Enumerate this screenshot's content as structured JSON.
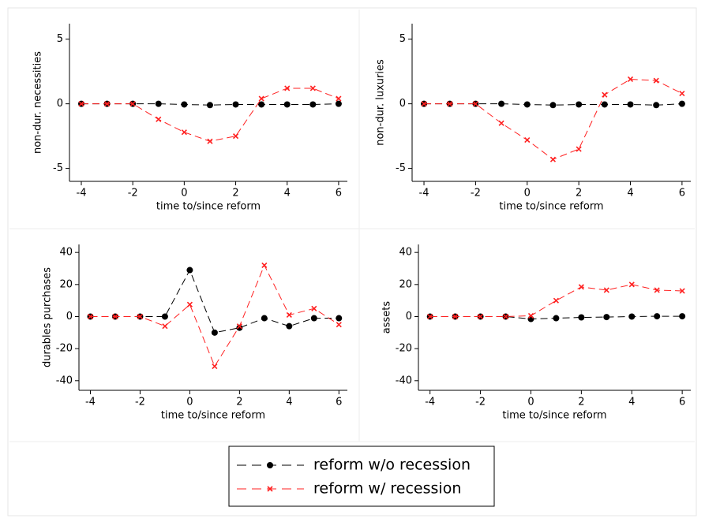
{
  "chart_data": [
    {
      "type": "line",
      "ylabel": "non-dur. necessities",
      "xlabel": "time to/since reform",
      "x": [
        -4,
        -3,
        -2,
        -1,
        0,
        1,
        2,
        3,
        4,
        5,
        6
      ],
      "xlim": [
        -4.46,
        6.34
      ],
      "xticks": [
        -4,
        -2,
        0,
        2,
        4,
        6
      ],
      "ylim": [
        -6,
        6.2
      ],
      "yticks": [
        -5,
        0,
        5
      ],
      "series": [
        {
          "name": "reform w/o recession",
          "color": "#000000",
          "marker": "circle",
          "values": [
            0,
            0,
            0,
            0,
            -0.05,
            -0.1,
            -0.05,
            -0.05,
            -0.05,
            -0.05,
            0
          ]
        },
        {
          "name": "reform w/ recession",
          "color": "#ff2020",
          "marker": "x",
          "values": [
            0,
            0,
            0,
            -1.2,
            -2.2,
            -2.9,
            -2.5,
            0.4,
            1.2,
            1.2,
            0.4
          ]
        }
      ]
    },
    {
      "type": "line",
      "ylabel": "non-dur. luxuries",
      "xlabel": "time to/since reform",
      "x": [
        -4,
        -3,
        -2,
        -1,
        0,
        1,
        2,
        3,
        4,
        5,
        6
      ],
      "xlim": [
        -4.46,
        6.34
      ],
      "xticks": [
        -4,
        -2,
        0,
        2,
        4,
        6
      ],
      "ylim": [
        -6,
        6.2
      ],
      "yticks": [
        -5,
        0,
        5
      ],
      "series": [
        {
          "color": "#000000",
          "marker": "circle",
          "values": [
            0,
            0,
            0,
            0,
            -0.05,
            -0.1,
            -0.05,
            -0.05,
            -0.05,
            -0.1,
            0
          ]
        },
        {
          "color": "#ff2020",
          "marker": "x",
          "values": [
            0,
            0,
            0,
            -1.5,
            -2.8,
            -4.3,
            -3.5,
            0.7,
            1.9,
            1.8,
            0.8
          ]
        }
      ]
    },
    {
      "type": "line",
      "ylabel": "durables purchases",
      "xlabel": "time to/since reform",
      "x": [
        -4,
        -3,
        -2,
        -1,
        0,
        1,
        2,
        3,
        4,
        5,
        6
      ],
      "xlim": [
        -4.46,
        6.34
      ],
      "xticks": [
        -4,
        -2,
        0,
        2,
        4,
        6
      ],
      "ylim": [
        -46,
        45
      ],
      "yticks": [
        -40,
        -20,
        0,
        20,
        40
      ],
      "series": [
        {
          "color": "#000000",
          "marker": "circle",
          "values": [
            0,
            0,
            0,
            0,
            29,
            -10,
            -7,
            -1,
            -6,
            -1,
            -1
          ]
        },
        {
          "color": "#ff2020",
          "marker": "x",
          "values": [
            0,
            0,
            0,
            -6,
            7.5,
            -31,
            -6,
            32,
            1,
            5,
            -5
          ]
        }
      ]
    },
    {
      "type": "line",
      "ylabel": "assets",
      "xlabel": "time to/since reform",
      "x": [
        -4,
        -3,
        -2,
        -1,
        0,
        1,
        2,
        3,
        4,
        5,
        6
      ],
      "xlim": [
        -4.46,
        6.34
      ],
      "xticks": [
        -4,
        -2,
        0,
        2,
        4,
        6
      ],
      "ylim": [
        -46,
        45
      ],
      "yticks": [
        -40,
        -20,
        0,
        20,
        40
      ],
      "series": [
        {
          "color": "#000000",
          "marker": "circle",
          "values": [
            0,
            0,
            0,
            0,
            -1.5,
            -1,
            -0.5,
            -0.3,
            0,
            0.2,
            0.2
          ]
        },
        {
          "color": "#ff2020",
          "marker": "x",
          "values": [
            0,
            0,
            0,
            0,
            0.5,
            10,
            18.5,
            16.5,
            20,
            16.5,
            16
          ]
        }
      ]
    }
  ]
}
